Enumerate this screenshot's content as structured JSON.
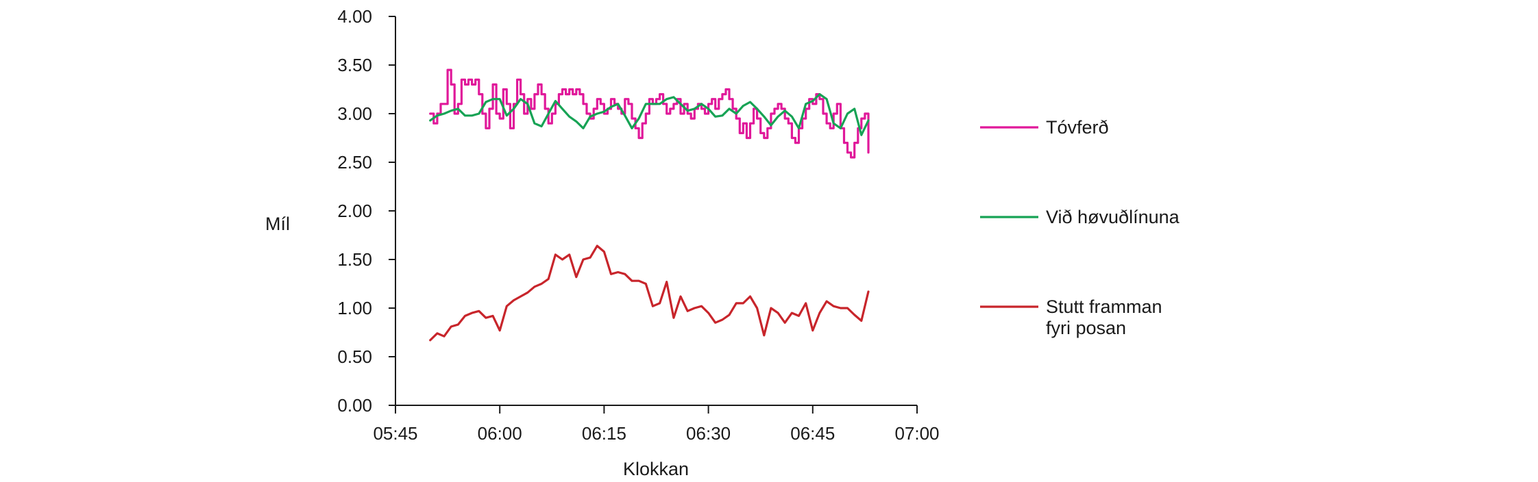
{
  "chart_data": {
    "type": "line",
    "xlabel": "Klokkan",
    "ylabel": "Míl",
    "x_unit": "time of day (HH:MM)",
    "xlim": [
      "05:45",
      "07:00"
    ],
    "ylim": [
      0,
      4
    ],
    "x_ticks": [
      "05:45",
      "06:00",
      "06:15",
      "06:30",
      "06:45",
      "07:00"
    ],
    "y_ticks": [
      "0.00",
      "0.50",
      "1.00",
      "1.50",
      "2.00",
      "2.50",
      "3.00",
      "3.50",
      "4.00"
    ],
    "grid": false,
    "legend_position": "right",
    "series": [
      {
        "name": "Tóvferð",
        "color": "#e0199a",
        "step": true,
        "points": [
          [
            "05:50",
            3.0
          ],
          [
            "05:50.5",
            2.9
          ],
          [
            "05:51",
            3.0
          ],
          [
            "05:51.5",
            3.1
          ],
          [
            "05:52",
            3.1
          ],
          [
            "05:52.5",
            3.45
          ],
          [
            "05:53",
            3.3
          ],
          [
            "05:53.5",
            3.0
          ],
          [
            "05:54",
            3.1
          ],
          [
            "05:54.5",
            3.35
          ],
          [
            "05:55",
            3.3
          ],
          [
            "05:55.5",
            3.35
          ],
          [
            "05:56",
            3.3
          ],
          [
            "05:56.5",
            3.35
          ],
          [
            "05:57",
            3.2
          ],
          [
            "05:57.5",
            3.0
          ],
          [
            "05:58",
            2.85
          ],
          [
            "05:58.5",
            3.05
          ],
          [
            "05:59",
            3.3
          ],
          [
            "05:59.5",
            3.0
          ],
          [
            "06:00",
            2.95
          ],
          [
            "06:00.5",
            3.25
          ],
          [
            "06:01",
            3.1
          ],
          [
            "06:01.5",
            2.85
          ],
          [
            "06:02",
            3.1
          ],
          [
            "06:02.5",
            3.35
          ],
          [
            "06:03",
            3.2
          ],
          [
            "06:03.5",
            3.0
          ],
          [
            "06:04",
            3.15
          ],
          [
            "06:04.5",
            3.05
          ],
          [
            "06:05",
            3.2
          ],
          [
            "06:05.5",
            3.3
          ],
          [
            "06:06",
            3.2
          ],
          [
            "06:06.5",
            3.05
          ],
          [
            "06:07",
            2.9
          ],
          [
            "06:07.5",
            3.0
          ],
          [
            "06:08",
            3.1
          ],
          [
            "06:08.5",
            3.2
          ],
          [
            "06:09",
            3.25
          ],
          [
            "06:09.5",
            3.2
          ],
          [
            "06:10",
            3.25
          ],
          [
            "06:10.5",
            3.2
          ],
          [
            "06:11",
            3.25
          ],
          [
            "06:11.5",
            3.2
          ],
          [
            "06:12",
            3.1
          ],
          [
            "06:12.5",
            3.0
          ],
          [
            "06:13",
            2.95
          ],
          [
            "06:13.5",
            3.05
          ],
          [
            "06:14",
            3.15
          ],
          [
            "06:14.5",
            3.1
          ],
          [
            "06:15",
            3.0
          ],
          [
            "06:15.5",
            3.05
          ],
          [
            "06:16",
            3.15
          ],
          [
            "06:16.5",
            3.1
          ],
          [
            "06:17",
            3.05
          ],
          [
            "06:17.5",
            3.0
          ],
          [
            "06:18",
            3.15
          ],
          [
            "06:18.5",
            3.1
          ],
          [
            "06:19",
            2.95
          ],
          [
            "06:19.5",
            2.85
          ],
          [
            "06:20",
            2.75
          ],
          [
            "06:20.5",
            2.9
          ],
          [
            "06:21",
            3.0
          ],
          [
            "06:21.5",
            3.15
          ],
          [
            "06:22",
            3.1
          ],
          [
            "06:22.5",
            3.15
          ],
          [
            "06:23",
            3.2
          ],
          [
            "06:23.5",
            3.1
          ],
          [
            "06:24",
            3.0
          ],
          [
            "06:24.5",
            3.05
          ],
          [
            "06:25",
            3.1
          ],
          [
            "06:25.5",
            3.15
          ],
          [
            "06:26",
            3.0
          ],
          [
            "06:26.5",
            3.1
          ],
          [
            "06:27",
            3.0
          ],
          [
            "06:27.5",
            2.95
          ],
          [
            "06:28",
            3.05
          ],
          [
            "06:28.5",
            3.1
          ],
          [
            "06:29",
            3.05
          ],
          [
            "06:29.5",
            3.0
          ],
          [
            "06:30",
            3.1
          ],
          [
            "06:30.5",
            3.15
          ],
          [
            "06:31",
            3.05
          ],
          [
            "06:31.5",
            3.15
          ],
          [
            "06:32",
            3.2
          ],
          [
            "06:32.5",
            3.25
          ],
          [
            "06:33",
            3.15
          ],
          [
            "06:33.5",
            3.05
          ],
          [
            "06:34",
            2.95
          ],
          [
            "06:34.5",
            2.8
          ],
          [
            "06:35",
            2.9
          ],
          [
            "06:35.5",
            2.75
          ],
          [
            "06:36",
            2.9
          ],
          [
            "06:36.5",
            3.05
          ],
          [
            "06:37",
            2.95
          ],
          [
            "06:37.5",
            2.8
          ],
          [
            "06:38",
            2.75
          ],
          [
            "06:38.5",
            2.85
          ],
          [
            "06:39",
            3.0
          ],
          [
            "06:39.5",
            3.05
          ],
          [
            "06:40",
            3.1
          ],
          [
            "06:40.5",
            3.05
          ],
          [
            "06:41",
            2.95
          ],
          [
            "06:41.5",
            2.9
          ],
          [
            "06:42",
            2.75
          ],
          [
            "06:42.5",
            2.7
          ],
          [
            "06:43",
            2.85
          ],
          [
            "06:43.5",
            2.95
          ],
          [
            "06:44",
            3.05
          ],
          [
            "06:44.5",
            3.15
          ],
          [
            "06:45",
            3.1
          ],
          [
            "06:45.5",
            3.2
          ],
          [
            "06:46",
            3.15
          ],
          [
            "06:46.5",
            3.0
          ],
          [
            "06:47",
            2.9
          ],
          [
            "06:47.5",
            2.85
          ],
          [
            "06:48",
            3.0
          ],
          [
            "06:48.5",
            3.1
          ],
          [
            "06:49",
            2.85
          ],
          [
            "06:49.5",
            2.7
          ],
          [
            "06:50",
            2.6
          ],
          [
            "06:50.5",
            2.55
          ],
          [
            "06:51",
            2.7
          ],
          [
            "06:51.5",
            2.85
          ],
          [
            "06:52",
            2.95
          ],
          [
            "06:52.5",
            3.0
          ],
          [
            "06:53",
            2.6
          ]
        ]
      },
      {
        "name": "Við høvuðlínuna",
        "color": "#17a355",
        "step": false,
        "points": [
          [
            "05:50",
            2.93
          ],
          [
            "05:51",
            2.98
          ],
          [
            "05:52",
            3.0
          ],
          [
            "05:53",
            3.03
          ],
          [
            "05:54",
            3.05
          ],
          [
            "05:55",
            2.98
          ],
          [
            "05:56",
            2.98
          ],
          [
            "05:57",
            3.0
          ],
          [
            "05:58",
            3.12
          ],
          [
            "05:59",
            3.15
          ],
          [
            "06:00",
            3.15
          ],
          [
            "06:01",
            2.98
          ],
          [
            "06:02",
            3.05
          ],
          [
            "06:03",
            3.15
          ],
          [
            "06:04",
            3.1
          ],
          [
            "06:05",
            2.9
          ],
          [
            "06:06",
            2.87
          ],
          [
            "06:07",
            3.0
          ],
          [
            "06:08",
            3.13
          ],
          [
            "06:09",
            3.05
          ],
          [
            "06:10",
            2.97
          ],
          [
            "06:11",
            2.92
          ],
          [
            "06:12",
            2.85
          ],
          [
            "06:13",
            2.97
          ],
          [
            "06:14",
            3.0
          ],
          [
            "06:15",
            3.02
          ],
          [
            "06:16",
            3.07
          ],
          [
            "06:17",
            3.1
          ],
          [
            "06:18",
            2.98
          ],
          [
            "06:19",
            2.85
          ],
          [
            "06:20",
            2.95
          ],
          [
            "06:21",
            3.1
          ],
          [
            "06:22",
            3.1
          ],
          [
            "06:23",
            3.1
          ],
          [
            "06:24",
            3.15
          ],
          [
            "06:25",
            3.17
          ],
          [
            "06:26",
            3.1
          ],
          [
            "06:27",
            3.03
          ],
          [
            "06:28",
            3.05
          ],
          [
            "06:29",
            3.1
          ],
          [
            "06:30",
            3.05
          ],
          [
            "06:31",
            2.97
          ],
          [
            "06:32",
            2.98
          ],
          [
            "06:33",
            3.05
          ],
          [
            "06:34",
            3.0
          ],
          [
            "06:35",
            3.08
          ],
          [
            "06:36",
            3.12
          ],
          [
            "06:37",
            3.05
          ],
          [
            "06:38",
            2.97
          ],
          [
            "06:39",
            2.88
          ],
          [
            "06:40",
            2.97
          ],
          [
            "06:41",
            3.03
          ],
          [
            "06:42",
            2.97
          ],
          [
            "06:43",
            2.85
          ],
          [
            "06:44",
            3.1
          ],
          [
            "06:45",
            3.13
          ],
          [
            "06:46",
            3.2
          ],
          [
            "06:47",
            3.15
          ],
          [
            "06:48",
            2.9
          ],
          [
            "06:49",
            2.85
          ],
          [
            "06:50",
            3.0
          ],
          [
            "06:51",
            3.05
          ],
          [
            "06:52",
            2.78
          ],
          [
            "06:53",
            2.93
          ]
        ]
      },
      {
        "name": "Stutt framman fyri posan",
        "color": "#c8252b",
        "step": false,
        "points": [
          [
            "05:50",
            0.67
          ],
          [
            "05:51",
            0.74
          ],
          [
            "05:52",
            0.71
          ],
          [
            "05:53",
            0.81
          ],
          [
            "05:54",
            0.83
          ],
          [
            "05:55",
            0.92
          ],
          [
            "05:56",
            0.95
          ],
          [
            "05:57",
            0.97
          ],
          [
            "05:58",
            0.9
          ],
          [
            "05:59",
            0.92
          ],
          [
            "06:00",
            0.77
          ],
          [
            "06:01",
            1.02
          ],
          [
            "06:02",
            1.08
          ],
          [
            "06:03",
            1.12
          ],
          [
            "06:04",
            1.16
          ],
          [
            "06:05",
            1.22
          ],
          [
            "06:06",
            1.25
          ],
          [
            "06:07",
            1.3
          ],
          [
            "06:08",
            1.55
          ],
          [
            "06:09",
            1.5
          ],
          [
            "06:10",
            1.55
          ],
          [
            "06:11",
            1.32
          ],
          [
            "06:12",
            1.5
          ],
          [
            "06:13",
            1.52
          ],
          [
            "06:14",
            1.64
          ],
          [
            "06:15",
            1.58
          ],
          [
            "06:16",
            1.35
          ],
          [
            "06:17",
            1.37
          ],
          [
            "06:18",
            1.35
          ],
          [
            "06:19",
            1.28
          ],
          [
            "06:20",
            1.28
          ],
          [
            "06:21",
            1.25
          ],
          [
            "06:22",
            1.02
          ],
          [
            "06:23",
            1.05
          ],
          [
            "06:24",
            1.27
          ],
          [
            "06:25",
            0.9
          ],
          [
            "06:26",
            1.12
          ],
          [
            "06:27",
            0.97
          ],
          [
            "06:28",
            1.0
          ],
          [
            "06:29",
            1.02
          ],
          [
            "06:30",
            0.95
          ],
          [
            "06:31",
            0.85
          ],
          [
            "06:32",
            0.88
          ],
          [
            "06:33",
            0.93
          ],
          [
            "06:34",
            1.05
          ],
          [
            "06:35",
            1.05
          ],
          [
            "06:36",
            1.12
          ],
          [
            "06:37",
            1.0
          ],
          [
            "06:38",
            0.72
          ],
          [
            "06:39",
            1.0
          ],
          [
            "06:40",
            0.95
          ],
          [
            "06:41",
            0.85
          ],
          [
            "06:42",
            0.95
          ],
          [
            "06:43",
            0.92
          ],
          [
            "06:44",
            1.05
          ],
          [
            "06:45",
            0.77
          ],
          [
            "06:46",
            0.95
          ],
          [
            "06:47",
            1.07
          ],
          [
            "06:48",
            1.02
          ],
          [
            "06:49",
            1.0
          ],
          [
            "06:50",
            1.0
          ],
          [
            "06:51",
            0.93
          ],
          [
            "06:52",
            0.87
          ],
          [
            "06:53",
            1.17
          ]
        ]
      }
    ]
  }
}
